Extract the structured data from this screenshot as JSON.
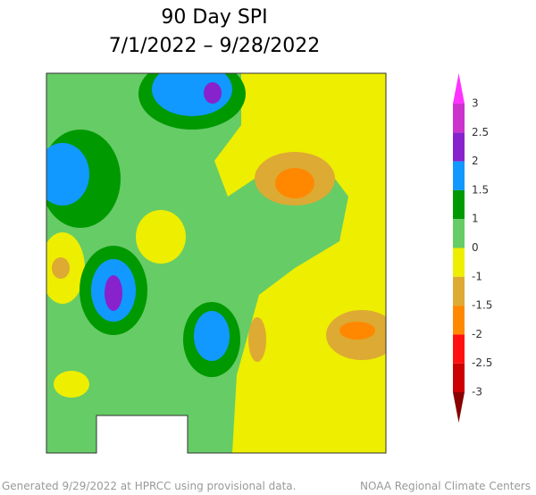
{
  "header": {
    "title": "90 Day SPI",
    "subtitle": "7/1/2022 – 9/28/2022"
  },
  "legend": {
    "labels": [
      "3",
      "2.5",
      "2",
      "1.5",
      "1",
      "0",
      "-1",
      "-1.5",
      "-2",
      "-2.5",
      "-3"
    ],
    "colors": [
      "#ff33ff",
      "#cc33cc",
      "#8822cc",
      "#1199ff",
      "#009900",
      "#66cc66",
      "#eeee00",
      "#ddaa33",
      "#ff8800",
      "#ff1111",
      "#cc0000",
      "#880000"
    ]
  },
  "footer": {
    "left": "Generated 9/29/2022 at HPRCC using provisional data.",
    "right": "NOAA Regional Climate Centers"
  }
}
